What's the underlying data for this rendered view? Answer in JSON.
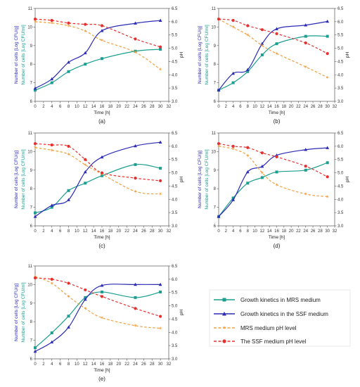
{
  "colors": {
    "mrs": "#1a9e8f",
    "ssf": "#2b2bb5",
    "mrs_ph": "#f0a040",
    "ssf_ph": "#e53030"
  },
  "common": {
    "xlabel": "Time [h]",
    "ylabel_ssf": "Number of cells [Log CFU/g]",
    "ylabel_mrs": "Number of cells [Log CFU/ml]",
    "ylabel_ph": "pH",
    "xlim": [
      0,
      32
    ],
    "x_ticks": [
      0,
      2,
      4,
      6,
      8,
      10,
      12,
      14,
      16,
      18,
      20,
      22,
      24,
      26,
      28,
      30,
      32
    ],
    "ylim_left": [
      6,
      11
    ],
    "y_ticks": [
      6,
      7,
      8,
      9,
      10,
      11
    ],
    "ylim_ph": [
      3.0,
      6.5
    ],
    "ph_ticks": [
      "3.0",
      "3.5",
      "4.0",
      "4.5",
      "5.0",
      "5.5",
      "6.0",
      "6.5"
    ]
  },
  "legend": {
    "mrs": "Growth kinetics in MRS medium",
    "ssf": "Growth kinetics in the SSF medium",
    "mrs_ph": "MRS medium pH level",
    "ssf_ph": "The SSF medium pH level"
  },
  "chart_data": [
    {
      "type": "line",
      "caption": "(a)",
      "x_points": [
        0,
        4,
        8,
        12,
        16,
        24,
        30
      ],
      "series": [
        {
          "key": "mrs",
          "name": "Growth kinetics in MRS medium",
          "axis": "left",
          "points": [
            6.6,
            7.0,
            7.6,
            8.0,
            8.3,
            8.7,
            8.8
          ]
        },
        {
          "key": "ssf",
          "name": "Growth kinetics in the SSF medium",
          "axis": "left",
          "points": [
            6.7,
            7.2,
            8.1,
            8.6,
            9.8,
            10.2,
            10.35
          ]
        },
        {
          "key": "mrs_ph",
          "name": "MRS medium pH level",
          "axis": "right",
          "points": [
            6.0,
            5.95,
            5.85,
            5.65,
            5.3,
            4.85,
            4.2
          ]
        },
        {
          "key": "ssf_ph",
          "name": "The SSF medium pH level",
          "axis": "right",
          "points": [
            6.1,
            6.05,
            5.95,
            5.9,
            5.85,
            5.35,
            5.05
          ]
        }
      ]
    },
    {
      "type": "line",
      "caption": "(b)",
      "x_points": [
        0,
        4,
        8,
        12,
        16,
        24,
        30
      ],
      "series": [
        {
          "key": "mrs",
          "name": "Growth kinetics in MRS medium",
          "axis": "left",
          "points": [
            6.6,
            7.0,
            7.6,
            8.5,
            9.1,
            9.5,
            9.5
          ]
        },
        {
          "key": "ssf",
          "name": "Growth kinetics in the SSF medium",
          "axis": "left",
          "points": [
            6.6,
            7.5,
            7.7,
            9.1,
            9.9,
            10.1,
            10.3
          ]
        },
        {
          "key": "mrs_ph",
          "name": "MRS medium pH level",
          "axis": "right",
          "points": [
            6.1,
            5.8,
            5.5,
            5.1,
            4.8,
            4.3,
            3.9
          ]
        },
        {
          "key": "ssf_ph",
          "name": "The SSF medium pH level",
          "axis": "right",
          "points": [
            6.1,
            6.05,
            5.85,
            5.7,
            5.55,
            5.2,
            4.8
          ]
        }
      ]
    },
    {
      "type": "line",
      "caption": "(c)",
      "x_points": [
        0,
        4,
        8,
        12,
        16,
        24,
        30
      ],
      "series": [
        {
          "key": "mrs",
          "name": "Growth kinetics in MRS medium",
          "axis": "left",
          "points": [
            6.7,
            7.0,
            7.9,
            8.3,
            8.7,
            9.3,
            9.1
          ]
        },
        {
          "key": "ssf",
          "name": "Growth kinetics in the SSF medium",
          "axis": "left",
          "points": [
            6.5,
            7.1,
            7.4,
            8.9,
            9.7,
            10.3,
            10.5
          ]
        },
        {
          "key": "mrs_ph",
          "name": "MRS medium pH level",
          "axis": "right",
          "points": [
            5.95,
            5.85,
            5.7,
            5.3,
            4.95,
            4.3,
            4.2
          ]
        },
        {
          "key": "ssf_ph",
          "name": "The SSF medium pH level",
          "axis": "right",
          "points": [
            6.1,
            6.05,
            6.0,
            5.5,
            5.0,
            4.8,
            4.7
          ]
        }
      ]
    },
    {
      "type": "line",
      "caption": "(d)",
      "x_points": [
        0,
        4,
        8,
        12,
        16,
        24,
        30
      ],
      "series": [
        {
          "key": "mrs",
          "name": "Growth kinetics in MRS medium",
          "axis": "left",
          "points": [
            6.5,
            7.5,
            8.3,
            8.6,
            8.9,
            9.0,
            9.4
          ]
        },
        {
          "key": "ssf",
          "name": "Growth kinetics in the SSF medium",
          "axis": "left",
          "points": [
            6.5,
            7.4,
            8.9,
            9.2,
            9.8,
            10.1,
            10.2
          ]
        },
        {
          "key": "mrs_ph",
          "name": "MRS medium pH level",
          "axis": "right",
          "points": [
            6.0,
            5.9,
            5.65,
            5.0,
            4.55,
            4.2,
            4.1
          ]
        },
        {
          "key": "ssf_ph",
          "name": "The SSF medium pH level",
          "axis": "right",
          "points": [
            6.1,
            6.0,
            5.95,
            5.75,
            5.6,
            5.25,
            4.85
          ]
        }
      ]
    },
    {
      "type": "line",
      "caption": "(e)",
      "x_points": [
        0,
        4,
        8,
        12,
        16,
        24,
        30
      ],
      "series": [
        {
          "key": "mrs",
          "name": "Growth kinetics in MRS medium",
          "axis": "left",
          "points": [
            6.6,
            7.4,
            8.3,
            9.3,
            9.6,
            9.3,
            9.6
          ]
        },
        {
          "key": "ssf",
          "name": "Growth kinetics in the SSF medium",
          "axis": "left",
          "points": [
            6.4,
            6.9,
            7.7,
            9.2,
            9.95,
            10.0,
            10.0
          ]
        },
        {
          "key": "mrs_ph",
          "name": "MRS medium pH level",
          "axis": "right",
          "points": [
            6.1,
            5.85,
            5.35,
            4.9,
            4.55,
            4.25,
            4.15
          ]
        },
        {
          "key": "ssf_ph",
          "name": "The SSF medium pH level",
          "axis": "right",
          "points": [
            6.05,
            6.0,
            5.85,
            5.6,
            5.35,
            4.9,
            4.6
          ]
        }
      ]
    }
  ]
}
